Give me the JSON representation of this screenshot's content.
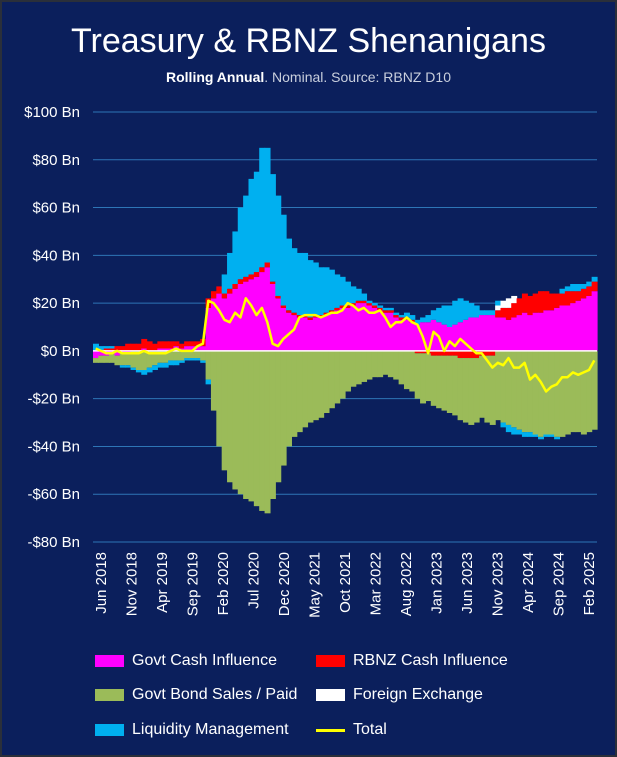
{
  "title": "Treasury & RBNZ Shenanigans",
  "subtitle_bold": "Rolling Annual",
  "subtitle_rest": ". Nominal. Source: RBNZ D10",
  "chart_data": {
    "type": "bar",
    "stacked": true,
    "ylim": [
      -80,
      100
    ],
    "y_ticks": [
      100,
      80,
      60,
      40,
      20,
      0,
      -20,
      -40,
      -60,
      -80
    ],
    "y_tick_labels": [
      "$100 Bn",
      "$80 Bn",
      "$60 Bn",
      "$40 Bn",
      "$20 Bn",
      "$0 Bn",
      "-$20 Bn",
      "-$40 Bn",
      "-$60 Bn",
      "-$80 Bn"
    ],
    "x_tick_labels": [
      "Jun 2018",
      "Nov 2018",
      "Apr 2019",
      "Sep 2019",
      "Feb 2020",
      "Jul 2020",
      "Dec 2020",
      "May 2021",
      "Oct 2021",
      "Mar 2022",
      "Aug 2022",
      "Jan 2023",
      "Jun 2023",
      "Nov 2023",
      "Apr 2024",
      "Sep 2024",
      "Feb 2025"
    ],
    "grid": true,
    "legend_position": "bottom",
    "series": [
      {
        "name": "Govt Cash Influence",
        "color": "#ff00ff",
        "kind": "bar",
        "values": [
          -3,
          -2,
          -2,
          -1,
          -2,
          -1,
          -1,
          0,
          0,
          1,
          0,
          0,
          1,
          1,
          1,
          2,
          1,
          2,
          2,
          2,
          2,
          18,
          22,
          24,
          22,
          24,
          26,
          28,
          29,
          30,
          31,
          33,
          35,
          28,
          22,
          18,
          16,
          15,
          14,
          14,
          13,
          14,
          14,
          15,
          16,
          17,
          18,
          18,
          19,
          20,
          20,
          19,
          18,
          17,
          16,
          16,
          14,
          13,
          13,
          12,
          11,
          12,
          12,
          13,
          12,
          11,
          10,
          11,
          12,
          13,
          14,
          14,
          15,
          15,
          15,
          14,
          14,
          13,
          14,
          15,
          16,
          15,
          16,
          16,
          17,
          17,
          18,
          19,
          19,
          20,
          21,
          22,
          23,
          25
        ]
      },
      {
        "name": "RBNZ Cash Influence",
        "color": "#ff0000",
        "kind": "bar",
        "values": [
          0,
          0,
          1,
          1,
          2,
          2,
          3,
          3,
          3,
          4,
          4,
          3,
          3,
          3,
          3,
          2,
          2,
          2,
          2,
          2,
          3,
          4,
          3,
          3,
          2,
          2,
          2,
          2,
          2,
          2,
          2,
          2,
          2,
          1,
          1,
          1,
          1,
          1,
          1,
          1,
          1,
          1,
          1,
          1,
          1,
          1,
          1,
          1,
          1,
          1,
          1,
          1,
          1,
          1,
          1,
          1,
          1,
          1,
          1,
          1,
          -1,
          -1,
          -1,
          -2,
          -2,
          -2,
          -2,
          -2,
          -3,
          -3,
          -3,
          -3,
          -2,
          -2,
          -2,
          3,
          4,
          5,
          6,
          7,
          8,
          8,
          8,
          9,
          8,
          7,
          6,
          5,
          6,
          5,
          4,
          4,
          4,
          4
        ]
      },
      {
        "name": "Govt Bond Sales / Paid",
        "color": "#9bbb59",
        "kind": "bar",
        "values": [
          -2,
          -3,
          -3,
          -4,
          -4,
          -5,
          -5,
          -7,
          -8,
          -8,
          -7,
          -6,
          -5,
          -5,
          -4,
          -4,
          -4,
          -3,
          -3,
          -3,
          -4,
          -12,
          -25,
          -40,
          -50,
          -55,
          -58,
          -60,
          -62,
          -63,
          -65,
          -67,
          -68,
          -62,
          -55,
          -48,
          -40,
          -36,
          -34,
          -32,
          -30,
          -29,
          -28,
          -26,
          -24,
          -22,
          -20,
          -17,
          -15,
          -14,
          -13,
          -12,
          -11,
          -11,
          -10,
          -11,
          -12,
          -14,
          -16,
          -17,
          -19,
          -21,
          -20,
          -21,
          -22,
          -23,
          -24,
          -25,
          -26,
          -27,
          -28,
          -27,
          -26,
          -28,
          -29,
          -29,
          -30,
          -31,
          -32,
          -33,
          -34,
          -34,
          -35,
          -36,
          -35,
          -35,
          -36,
          -36,
          -35,
          -34,
          -34,
          -35,
          -34,
          -33
        ]
      },
      {
        "name": "Foreign Exchange",
        "color": "#ffffff",
        "kind": "bar",
        "values": [
          0,
          0,
          0,
          0,
          0,
          0,
          0,
          0,
          0,
          0,
          0,
          0,
          0,
          0,
          0,
          0,
          0,
          0,
          0,
          0,
          0,
          0,
          0,
          0,
          0,
          0,
          0,
          0,
          0,
          0,
          0,
          0,
          0,
          0,
          0,
          0,
          0,
          0,
          0,
          0,
          0,
          0,
          0,
          0,
          0,
          0,
          0,
          0,
          0,
          0,
          0,
          0,
          0,
          0,
          0,
          0,
          0,
          0,
          0,
          0,
          0,
          0,
          0,
          0,
          0,
          0,
          0,
          0,
          0,
          0,
          0,
          0,
          0,
          0,
          0,
          2,
          3,
          4,
          3,
          0,
          0,
          0,
          0,
          0,
          0,
          0,
          0,
          0,
          0,
          0,
          0,
          0,
          0,
          0
        ]
      },
      {
        "name": "Liquidity Management",
        "color": "#00b0f0",
        "kind": "bar",
        "values": [
          3,
          2,
          1,
          1,
          0,
          -1,
          -1,
          -1,
          -1,
          -2,
          -2,
          -2,
          -2,
          -2,
          -2,
          -2,
          -1,
          -1,
          -1,
          -1,
          -1,
          -2,
          0,
          0,
          8,
          15,
          22,
          30,
          34,
          40,
          42,
          50,
          48,
          45,
          42,
          38,
          30,
          27,
          26,
          26,
          24,
          22,
          20,
          19,
          17,
          14,
          12,
          10,
          7,
          5,
          3,
          1,
          1,
          1,
          1,
          1,
          1,
          1,
          2,
          2,
          2,
          2,
          3,
          4,
          6,
          8,
          9,
          10,
          10,
          8,
          6,
          5,
          2,
          2,
          2,
          2,
          -2,
          -3,
          -3,
          -2,
          -2,
          -2,
          -1,
          -1,
          -1,
          -1,
          -1,
          2,
          2,
          3,
          3,
          2,
          2,
          2
        ]
      },
      {
        "name": "Total",
        "color": "#ffff00",
        "kind": "line",
        "values": [
          1,
          0,
          -1,
          -1,
          0,
          -1,
          -1,
          -1,
          -1,
          0,
          -1,
          -1,
          -1,
          -1,
          0,
          1,
          0,
          0,
          0,
          2,
          3,
          21,
          20,
          17,
          13,
          12,
          16,
          14,
          22,
          19,
          15,
          18,
          12,
          3,
          2,
          5,
          7,
          9,
          14,
          15,
          15,
          15,
          14,
          15,
          16,
          16,
          17,
          20,
          19,
          17,
          18,
          16,
          16,
          17,
          14,
          10,
          12,
          12,
          14,
          12,
          11,
          6,
          -1,
          8,
          6,
          0,
          4,
          2,
          5,
          3,
          1,
          -1,
          -1,
          -4,
          -7,
          -5,
          -6,
          -3,
          -7,
          -7,
          -5,
          -12,
          -10,
          -13,
          -17,
          -15,
          -14,
          -11,
          -11,
          -9,
          -10,
          -9,
          -8,
          -4
        ]
      }
    ]
  }
}
